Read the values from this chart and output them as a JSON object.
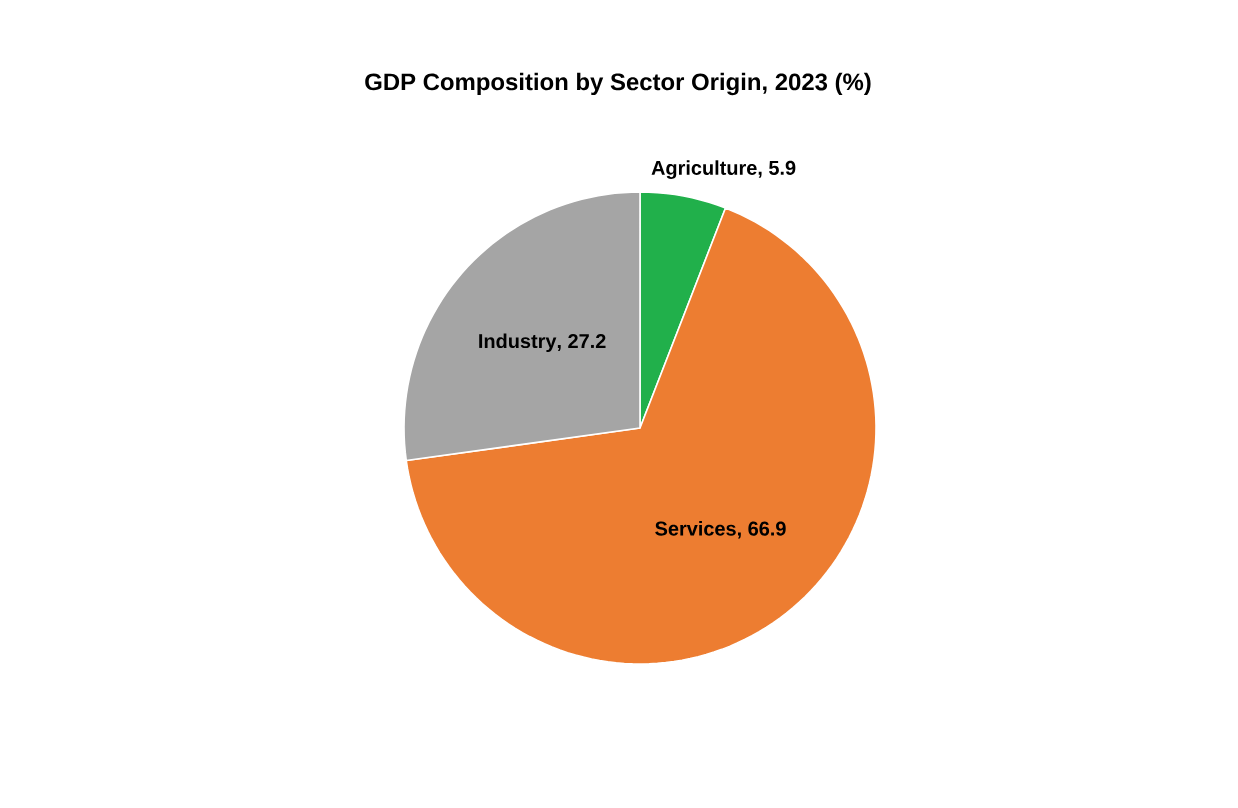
{
  "chart_data": {
    "type": "pie",
    "title": "GDP Composition by Sector Origin, 2023 (%)",
    "categories": [
      "Agriculture",
      "Services",
      "Industry"
    ],
    "values": [
      5.9,
      66.9,
      27.2
    ],
    "value_labels": [
      ", 5.9",
      ", 66.9",
      ", 27.2"
    ],
    "colors": [
      "#21b04b",
      "#ed7d31",
      "#a5a5a5"
    ]
  }
}
